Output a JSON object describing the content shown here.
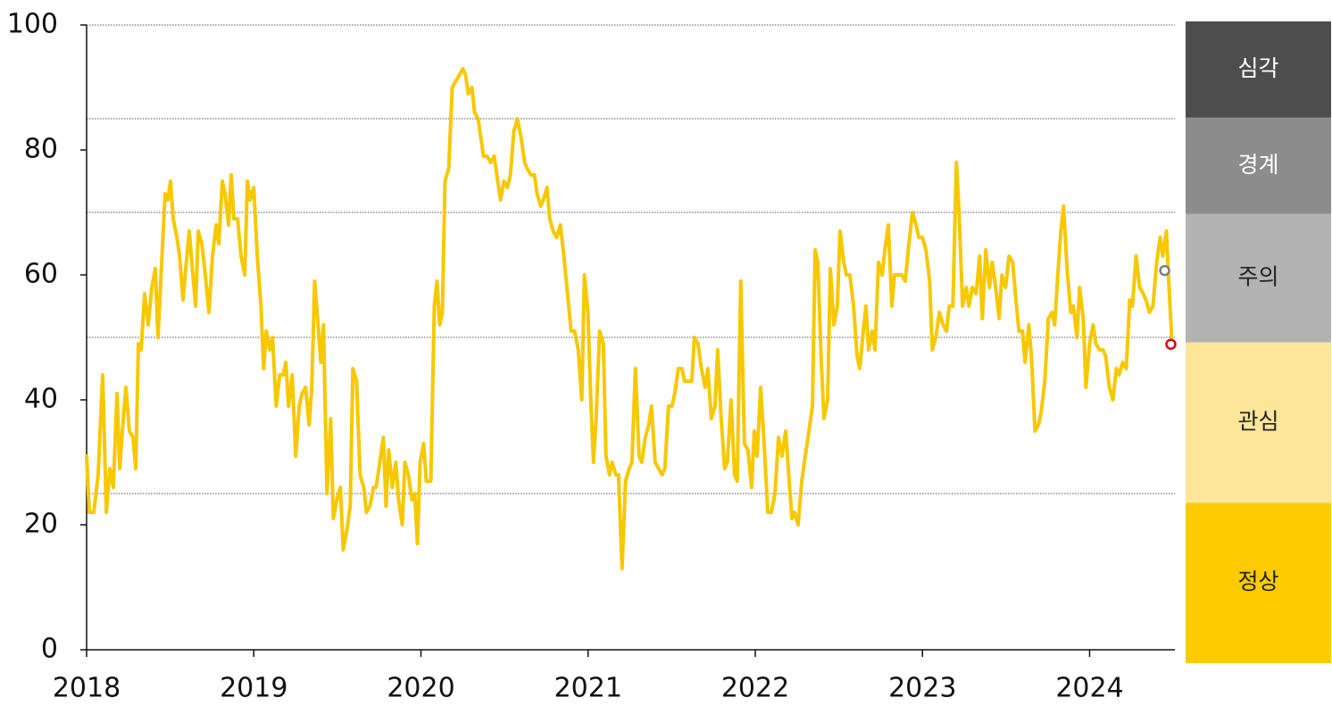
{
  "chart_data": {
    "type": "line",
    "color": "#f7c800",
    "xlim": [
      2018,
      2024.51
    ],
    "xticks": [
      2018,
      2019,
      2020,
      2021,
      2022,
      2023,
      2024
    ],
    "ylim": [
      0,
      100
    ],
    "yticks": [
      0,
      20,
      40,
      60,
      80,
      100
    ],
    "x": [
      2018,
      2018.016,
      2018.043,
      2018.069,
      2018.096,
      2018.118,
      2018.139,
      2018.16,
      2018.182,
      2018.198,
      2018.214,
      2018.235,
      2018.256,
      2018.278,
      2018.294,
      2018.31,
      2018.326,
      2018.347,
      2018.369,
      2018.39,
      2018.411,
      2018.427,
      2018.449,
      2018.47,
      2018.486,
      2018.502,
      2018.518,
      2018.54,
      2018.556,
      2018.577,
      2018.593,
      2018.614,
      2018.636,
      2018.652,
      2018.668,
      2018.689,
      2018.71,
      2018.732,
      2018.753,
      2018.775,
      2018.791,
      2018.812,
      2018.828,
      2018.849,
      2018.865,
      2018.881,
      2018.903,
      2018.924,
      2018.946,
      2018.962,
      2018.978,
      2019,
      2019.021,
      2019.043,
      2019.059,
      2019.075,
      2019.096,
      2019.112,
      2019.134,
      2019.155,
      2019.176,
      2019.192,
      2019.208,
      2019.23,
      2019.251,
      2019.272,
      2019.289,
      2019.31,
      2019.331,
      2019.347,
      2019.364,
      2019.385,
      2019.401,
      2019.417,
      2019.438,
      2019.46,
      2019.476,
      2019.497,
      2019.518,
      2019.535,
      2019.556,
      2019.577,
      2019.593,
      2019.615,
      2019.636,
      2019.658,
      2019.674,
      2019.695,
      2019.716,
      2019.732,
      2019.754,
      2019.775,
      2019.791,
      2019.807,
      2019.829,
      2019.85,
      2019.866,
      2019.888,
      2019.904,
      2019.925,
      2019.946,
      2019.963,
      2019.979,
      2019.995,
      2020.016,
      2020.032,
      2020.059,
      2020.08,
      2020.096,
      2020.112,
      2020.128,
      2020.144,
      2020.166,
      2020.187,
      2020.208,
      2020.23,
      2020.251,
      2020.267,
      2020.283,
      2020.305,
      2020.321,
      2020.342,
      2020.358,
      2020.374,
      2020.396,
      2020.417,
      2020.438,
      2020.454,
      2020.476,
      2020.497,
      2020.518,
      2020.535,
      2020.556,
      2020.577,
      2020.599,
      2020.62,
      2020.636,
      2020.658,
      2020.679,
      2020.695,
      2020.716,
      2020.732,
      2020.754,
      2020.77,
      2020.791,
      2020.812,
      2020.834,
      2020.855,
      2020.877,
      2020.898,
      2020.919,
      2020.941,
      2020.962,
      2020.978,
      2020.999,
      2021.016,
      2021.032,
      2021.048,
      2021.069,
      2021.091,
      2021.107,
      2021.128,
      2021.144,
      2021.166,
      2021.182,
      2021.203,
      2021.224,
      2021.246,
      2021.262,
      2021.283,
      2021.305,
      2021.321,
      2021.342,
      2021.363,
      2021.379,
      2021.401,
      2021.422,
      2021.443,
      2021.459,
      2021.481,
      2021.502,
      2021.518,
      2021.54,
      2021.561,
      2021.577,
      2021.598,
      2021.62,
      2021.636,
      2021.657,
      2021.678,
      2021.7,
      2021.716,
      2021.737,
      2021.759,
      2021.775,
      2021.796,
      2021.817,
      2021.833,
      2021.855,
      2021.876,
      2021.892,
      2021.913,
      2021.935,
      2021.956,
      2021.978,
      2021.994,
      2022.011,
      2022.032,
      2022.053,
      2022.075,
      2022.096,
      2022.118,
      2022.139,
      2022.16,
      2022.182,
      2022.203,
      2022.219,
      2022.235,
      2022.256,
      2022.278,
      2022.299,
      2022.321,
      2022.342,
      2022.358,
      2022.374,
      2022.395,
      2022.411,
      2022.433,
      2022.449,
      2022.47,
      2022.491,
      2022.507,
      2022.529,
      2022.545,
      2022.566,
      2022.588,
      2022.609,
      2022.625,
      2022.646,
      2022.662,
      2022.678,
      2022.7,
      2022.716,
      2022.737,
      2022.759,
      2022.775,
      2022.796,
      2022.817,
      2022.833,
      2022.855,
      2022.876,
      2022.897,
      2022.919,
      2022.94,
      2022.962,
      2022.978,
      2023,
      2023.021,
      2023.043,
      2023.059,
      2023.08,
      2023.101,
      2023.123,
      2023.144,
      2023.16,
      2023.182,
      2023.203,
      2023.219,
      2023.24,
      2023.262,
      2023.278,
      2023.299,
      2023.321,
      2023.342,
      2023.358,
      2023.379,
      2023.401,
      2023.417,
      2023.438,
      2023.459,
      2023.475,
      2023.497,
      2023.518,
      2023.54,
      2023.556,
      2023.577,
      2023.598,
      2023.614,
      2023.636,
      2023.652,
      2023.673,
      2023.694,
      2023.71,
      2023.732,
      2023.753,
      2023.775,
      2023.791,
      2023.812,
      2023.828,
      2023.844,
      2023.865,
      2023.887,
      2023.903,
      2023.924,
      2023.94,
      2023.962,
      2023.978,
      2024,
      2024.021,
      2024.037,
      2024.059,
      2024.08,
      2024.096,
      2024.118,
      2024.139,
      2024.16,
      2024.176,
      2024.198,
      2024.219,
      2024.24,
      2024.256,
      2024.278,
      2024.299,
      2024.321,
      2024.337,
      2024.358,
      2024.379,
      2024.401,
      2024.422,
      2024.438,
      2024.459,
      2024.475,
      2024.491
    ],
    "values": [
      31,
      22,
      22,
      28,
      44,
      22,
      29,
      26,
      41,
      29,
      35,
      42,
      35,
      34,
      29,
      49,
      48,
      57,
      52,
      58,
      61,
      50,
      62,
      73,
      72,
      75,
      69,
      66,
      63,
      56,
      61,
      67,
      60,
      55,
      67,
      65,
      60,
      54,
      63,
      68,
      65,
      75,
      73,
      68,
      76,
      69,
      69,
      63,
      60,
      75,
      72,
      74,
      63,
      55,
      45,
      51,
      48,
      50,
      39,
      44,
      44,
      46,
      39,
      44,
      31,
      39,
      41,
      42,
      36,
      42,
      59,
      52,
      46,
      52,
      25,
      37,
      21,
      24,
      26,
      16,
      19,
      23,
      45,
      43,
      28,
      26,
      22,
      23,
      26,
      26,
      30,
      34,
      23,
      32,
      26,
      30,
      24,
      20,
      30,
      28,
      24,
      25,
      17,
      30,
      33,
      27,
      27,
      55,
      59,
      52,
      54,
      75,
      77,
      90,
      91,
      92,
      93,
      92,
      89,
      90,
      86,
      85,
      82,
      79,
      79,
      78,
      79,
      76,
      72,
      75,
      74,
      76,
      83,
      85,
      82,
      78,
      77,
      76,
      76,
      73,
      71,
      72,
      74,
      69,
      67,
      66,
      68,
      63,
      57,
      51,
      51,
      48,
      40,
      60,
      54,
      40,
      30,
      37,
      51,
      49,
      31,
      28,
      30,
      28,
      28,
      13,
      27,
      29,
      30,
      45,
      31,
      30,
      34,
      36,
      39,
      30,
      29,
      28,
      29,
      39,
      39,
      41,
      45,
      45,
      43,
      43,
      43,
      50,
      49,
      45,
      42,
      45,
      37,
      39,
      48,
      37,
      29,
      30,
      40,
      28,
      27,
      59,
      33,
      32,
      26,
      35,
      31,
      42,
      33,
      22,
      22,
      25,
      34,
      31,
      35,
      27,
      21,
      22,
      20,
      27,
      31,
      35,
      39,
      64,
      62,
      46,
      37,
      40,
      61,
      52,
      55,
      67,
      62,
      60,
      60,
      55,
      47,
      45,
      51,
      55,
      48,
      51,
      48,
      62,
      60,
      64,
      68,
      55,
      60,
      60,
      60,
      59,
      65,
      70,
      68,
      66,
      66,
      64,
      59,
      48,
      50,
      54,
      52,
      51,
      55,
      55,
      78,
      70,
      55,
      58,
      55,
      58,
      57,
      63,
      53,
      64,
      58,
      62,
      58,
      53,
      60,
      58,
      63,
      62,
      57,
      51,
      51,
      46,
      52,
      47,
      35,
      36,
      38,
      43,
      53,
      54,
      52,
      61,
      67,
      71,
      61,
      54,
      55,
      50,
      58,
      53,
      42,
      49,
      52,
      49,
      48,
      48,
      47,
      42,
      40,
      45,
      44,
      46,
      45,
      56,
      55,
      63,
      58,
      57,
      56,
      54,
      55,
      62,
      66,
      63,
      67,
      58,
      50
    ],
    "markers": [
      {
        "x": 2024.449,
        "y": 60.7,
        "color": "#7f7f7f"
      },
      {
        "x": 2024.486,
        "y": 48.9,
        "color": "#e0001b"
      }
    ],
    "bands": [
      {
        "name": "정상",
        "from": 0,
        "to": 25,
        "color": "#fecb00",
        "text_color": "#222222"
      },
      {
        "name": "관심",
        "from": 25,
        "to": 50,
        "color": "#fde59a",
        "text_color": "#222222"
      },
      {
        "name": "주의",
        "from": 50,
        "to": 70,
        "color": "#b3b3b3",
        "text_color": "#222222"
      },
      {
        "name": "경계",
        "from": 70,
        "to": 85,
        "color": "#8c8c8c",
        "text_color": "#ffffff"
      },
      {
        "name": "심각",
        "from": 85,
        "to": 100,
        "color": "#4d4d4d",
        "text_color": "#ffffff"
      }
    ]
  }
}
